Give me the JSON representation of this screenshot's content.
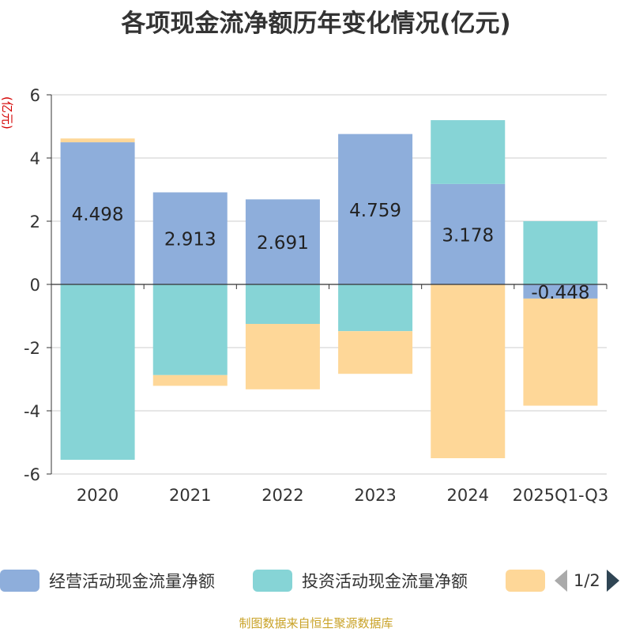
{
  "chart_data": {
    "type": "bar",
    "stacked": true,
    "title": "各项现金流净额历年变化情况(亿元)",
    "ylabel": "(亿元)",
    "categories": [
      "2020",
      "2021",
      "2022",
      "2023",
      "2024",
      "2025Q1-Q3"
    ],
    "ylim": [
      -6,
      6
    ],
    "yticks": [
      6,
      4,
      2,
      0,
      -2,
      -4,
      -6
    ],
    "grid": true,
    "legend_position": "bottom",
    "series": [
      {
        "name": "经营活动现金流量净额",
        "color": "#8eaedb",
        "values": [
          4.498,
          2.913,
          2.691,
          4.759,
          3.178,
          -0.448
        ],
        "labels": [
          "4.498",
          "2.913",
          "2.691",
          "4.759",
          "3.178",
          "-0.448"
        ]
      },
      {
        "name": "投资活动现金流量净额",
        "color": "#86d4d6",
        "values": [
          -5.55,
          -2.87,
          -1.25,
          -1.48,
          2.02,
          2.0
        ]
      },
      {
        "name": "",
        "color": "#fed798",
        "values": [
          0.12,
          -0.34,
          -2.07,
          -1.35,
          -5.5,
          -3.39
        ]
      }
    ]
  },
  "legend": {
    "pager": "1/2"
  },
  "source": "制图数据来自恒生聚源数据库"
}
